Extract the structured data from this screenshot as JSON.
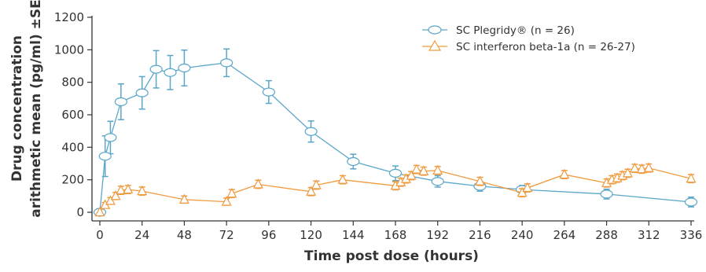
{
  "chart_data": {
    "type": "line",
    "xlabel": "Time post dose (hours)",
    "ylabel_line1": "Drug concentration",
    "ylabel_line2": "arithmetic mean (pg/ml) ±SE",
    "xlim": [
      0,
      336
    ],
    "ylim": [
      0,
      1200
    ],
    "xticks": [
      0,
      24,
      48,
      72,
      96,
      120,
      144,
      168,
      192,
      216,
      240,
      264,
      288,
      312,
      336
    ],
    "yticks": [
      0,
      200,
      400,
      600,
      800,
      1000,
      1200
    ],
    "grid": false,
    "legend_position": "top-right",
    "series": [
      {
        "name": "SC Plegridy® (n = 26)",
        "color": "#5aa6c8",
        "marker": "ellipse",
        "points": [
          {
            "x": 0,
            "y": 0,
            "se": 0
          },
          {
            "x": 3,
            "y": 345,
            "se": 125
          },
          {
            "x": 6,
            "y": 460,
            "se": 100
          },
          {
            "x": 12,
            "y": 680,
            "se": 110
          },
          {
            "x": 24,
            "y": 735,
            "se": 100
          },
          {
            "x": 32,
            "y": 880,
            "se": 115
          },
          {
            "x": 40,
            "y": 860,
            "se": 105
          },
          {
            "x": 48,
            "y": 888,
            "se": 110
          },
          {
            "x": 72,
            "y": 920,
            "se": 85
          },
          {
            "x": 96,
            "y": 740,
            "se": 70
          },
          {
            "x": 120,
            "y": 497,
            "se": 65
          },
          {
            "x": 144,
            "y": 312,
            "se": 45
          },
          {
            "x": 168,
            "y": 240,
            "se": 45
          },
          {
            "x": 192,
            "y": 190,
            "se": 35
          },
          {
            "x": 216,
            "y": 160,
            "se": 30
          },
          {
            "x": 240,
            "y": 140,
            "se": 25
          },
          {
            "x": 288,
            "y": 112,
            "se": 30
          },
          {
            "x": 336,
            "y": 63,
            "se": 30
          }
        ]
      },
      {
        "name": "SC interferon beta-1a (n = 26-27)",
        "color": "#ef9a3f",
        "marker": "triangle",
        "points": [
          {
            "x": 0,
            "y": 0,
            "se": 0
          },
          {
            "x": 3,
            "y": 45,
            "se": 15
          },
          {
            "x": 6,
            "y": 70,
            "se": 20
          },
          {
            "x": 9,
            "y": 100,
            "se": 22
          },
          {
            "x": 12,
            "y": 135,
            "se": 25
          },
          {
            "x": 16,
            "y": 140,
            "se": 25
          },
          {
            "x": 24,
            "y": 130,
            "se": 25
          },
          {
            "x": 48,
            "y": 78,
            "se": 22
          },
          {
            "x": 72,
            "y": 65,
            "se": 22
          },
          {
            "x": 75,
            "y": 115,
            "se": 25
          },
          {
            "x": 90,
            "y": 172,
            "se": 25
          },
          {
            "x": 120,
            "y": 127,
            "se": 25
          },
          {
            "x": 123,
            "y": 167,
            "se": 25
          },
          {
            "x": 138,
            "y": 200,
            "se": 25
          },
          {
            "x": 168,
            "y": 163,
            "se": 25
          },
          {
            "x": 171,
            "y": 185,
            "se": 25
          },
          {
            "x": 174,
            "y": 205,
            "se": 25
          },
          {
            "x": 177,
            "y": 225,
            "se": 25
          },
          {
            "x": 180,
            "y": 263,
            "se": 25
          },
          {
            "x": 184,
            "y": 253,
            "se": 25
          },
          {
            "x": 192,
            "y": 257,
            "se": 25
          },
          {
            "x": 216,
            "y": 190,
            "se": 25
          },
          {
            "x": 240,
            "y": 120,
            "se": 25
          },
          {
            "x": 243,
            "y": 150,
            "se": 25
          },
          {
            "x": 264,
            "y": 232,
            "se": 25
          },
          {
            "x": 288,
            "y": 180,
            "se": 25
          },
          {
            "x": 291,
            "y": 200,
            "se": 25
          },
          {
            "x": 294,
            "y": 210,
            "se": 25
          },
          {
            "x": 297,
            "y": 225,
            "se": 25
          },
          {
            "x": 300,
            "y": 240,
            "se": 25
          },
          {
            "x": 304,
            "y": 270,
            "se": 25
          },
          {
            "x": 308,
            "y": 265,
            "se": 25
          },
          {
            "x": 312,
            "y": 272,
            "se": 25
          },
          {
            "x": 336,
            "y": 207,
            "se": 25
          }
        ]
      }
    ]
  }
}
